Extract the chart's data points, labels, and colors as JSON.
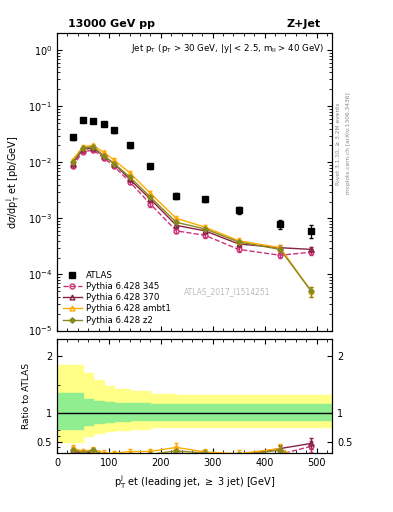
{
  "title_left": "13000 GeV pp",
  "title_right": "Z+Jet",
  "watermark": "ATLAS_2017_I1514251",
  "right_label1": "Rivet 3.1.10, ≥ 3.2M events",
  "right_label2": "mcplots.cern.ch [arXiv:1306.3436]",
  "ylabel_main": "dσ/dpⁱₜ et [pb/GeV]",
  "ylabel_ratio": "Ratio to ATLAS",
  "xlabel": "pⁱₜ et (leading jet, ≥ 3 jet) [GeV]",
  "xlim": [
    0,
    530
  ],
  "ylim_main": [
    1e-05,
    2.0
  ],
  "ylim_ratio": [
    0.3,
    2.3
  ],
  "atlas_x": [
    30,
    50,
    70,
    90,
    110,
    140,
    180,
    230,
    285,
    350,
    430,
    490
  ],
  "atlas_y": [
    0.028,
    0.058,
    0.055,
    0.048,
    0.037,
    0.02,
    0.0085,
    0.0025,
    0.0022,
    0.0014,
    0.0008,
    0.0006
  ],
  "py345_x": [
    30,
    50,
    70,
    90,
    110,
    140,
    180,
    230,
    285,
    350,
    430,
    490
  ],
  "py345_y": [
    0.0085,
    0.0155,
    0.0165,
    0.012,
    0.0085,
    0.0045,
    0.0018,
    0.0006,
    0.0005,
    0.00028,
    0.00022,
    0.00025
  ],
  "py370_x": [
    30,
    50,
    70,
    90,
    110,
    140,
    180,
    230,
    285,
    350,
    430,
    490
  ],
  "py370_y": [
    0.0095,
    0.017,
    0.018,
    0.013,
    0.0095,
    0.005,
    0.0022,
    0.00075,
    0.0006,
    0.00035,
    0.0003,
    0.00028
  ],
  "pyambt1_x": [
    30,
    50,
    70,
    90,
    110,
    140,
    180,
    230,
    285,
    350,
    430,
    490
  ],
  "pyambt1_y": [
    0.011,
    0.019,
    0.02,
    0.015,
    0.011,
    0.0065,
    0.0028,
    0.001,
    0.0007,
    0.0004,
    0.0003,
    5e-05
  ],
  "pyz2_x": [
    30,
    50,
    70,
    90,
    110,
    140,
    180,
    230,
    285,
    350,
    430,
    490
  ],
  "pyz2_y": [
    0.01,
    0.018,
    0.019,
    0.013,
    0.0095,
    0.0055,
    0.0024,
    0.00085,
    0.00065,
    0.00038,
    0.00028,
    5e-05
  ],
  "atlas_yerr_lo": [
    0.003,
    0.004,
    0.004,
    0.003,
    0.003,
    0.002,
    0.0008,
    0.0003,
    0.00025,
    0.0002,
    0.00015,
    0.00015
  ],
  "atlas_yerr_hi": [
    0.003,
    0.004,
    0.004,
    0.003,
    0.003,
    0.002,
    0.0008,
    0.0003,
    0.00025,
    0.0002,
    0.00015,
    0.00015
  ],
  "py345_yerr": [
    0.0005,
    0.001,
    0.001,
    0.0008,
    0.0006,
    0.0004,
    0.0002,
    6e-05,
    5e-05,
    3e-05,
    2e-05,
    3e-05
  ],
  "py370_yerr": [
    0.0005,
    0.001,
    0.001,
    0.0008,
    0.0006,
    0.0004,
    0.0002,
    7e-05,
    6e-05,
    4e-05,
    3e-05,
    3e-05
  ],
  "pyambt1_yerr": [
    0.0006,
    0.0012,
    0.0012,
    0.001,
    0.0008,
    0.0005,
    0.0003,
    0.0001,
    7e-05,
    5e-05,
    4e-05,
    1e-05
  ],
  "pyz2_yerr": [
    0.0005,
    0.001,
    0.001,
    0.0008,
    0.0006,
    0.0004,
    0.0002,
    8e-05,
    6e-05,
    4e-05,
    3e-05,
    1e-05
  ],
  "ratio_x": [
    30,
    50,
    70,
    90,
    110,
    140,
    180,
    230,
    285,
    350,
    430,
    490
  ],
  "ratio_345": [
    0.3,
    0.27,
    0.3,
    0.25,
    0.23,
    0.225,
    0.21,
    0.24,
    0.23,
    0.2,
    0.28,
    0.42
  ],
  "ratio_370": [
    0.34,
    0.29,
    0.33,
    0.27,
    0.26,
    0.25,
    0.26,
    0.3,
    0.27,
    0.25,
    0.38,
    0.47
  ],
  "ratio_ambt1": [
    0.39,
    0.33,
    0.36,
    0.31,
    0.3,
    0.325,
    0.33,
    0.4,
    0.32,
    0.29,
    0.38,
    0.08
  ],
  "ratio_z2": [
    0.36,
    0.31,
    0.35,
    0.27,
    0.26,
    0.275,
    0.28,
    0.34,
    0.3,
    0.27,
    0.35,
    0.08
  ],
  "ratio_345_err": [
    0.04,
    0.04,
    0.04,
    0.035,
    0.03,
    0.03,
    0.03,
    0.04,
    0.04,
    0.04,
    0.06,
    0.1
  ],
  "ratio_370_err": [
    0.04,
    0.04,
    0.04,
    0.035,
    0.03,
    0.03,
    0.03,
    0.04,
    0.04,
    0.04,
    0.06,
    0.1
  ],
  "ratio_ambt1_err": [
    0.05,
    0.05,
    0.05,
    0.04,
    0.035,
    0.04,
    0.05,
    0.08,
    0.06,
    0.06,
    0.08,
    0.04
  ],
  "ratio_z2_err": [
    0.04,
    0.04,
    0.04,
    0.035,
    0.03,
    0.035,
    0.04,
    0.06,
    0.05,
    0.05,
    0.07,
    0.03
  ],
  "band_x": [
    0,
    30,
    50,
    70,
    90,
    110,
    140,
    180,
    230,
    285,
    350,
    430,
    530
  ],
  "band_green_lo": [
    0.72,
    0.72,
    0.8,
    0.83,
    0.85,
    0.87,
    0.88,
    0.88,
    0.88,
    0.88,
    0.88,
    0.88,
    0.88
  ],
  "band_green_hi": [
    1.35,
    1.35,
    1.25,
    1.22,
    1.2,
    1.18,
    1.17,
    1.16,
    1.16,
    1.16,
    1.16,
    1.16,
    1.16
  ],
  "band_yellow_lo": [
    0.5,
    0.5,
    0.6,
    0.65,
    0.68,
    0.7,
    0.73,
    0.76,
    0.76,
    0.76,
    0.76,
    0.76,
    0.76
  ],
  "band_yellow_hi": [
    1.85,
    1.85,
    1.7,
    1.58,
    1.48,
    1.43,
    1.38,
    1.33,
    1.32,
    1.32,
    1.32,
    1.32,
    1.32
  ],
  "color_atlas": "#000000",
  "color_345": "#cc3377",
  "color_370": "#882244",
  "color_ambt1": "#ffaa00",
  "color_z2": "#888820",
  "color_green": "#90ee90",
  "color_yellow": "#ffff88"
}
